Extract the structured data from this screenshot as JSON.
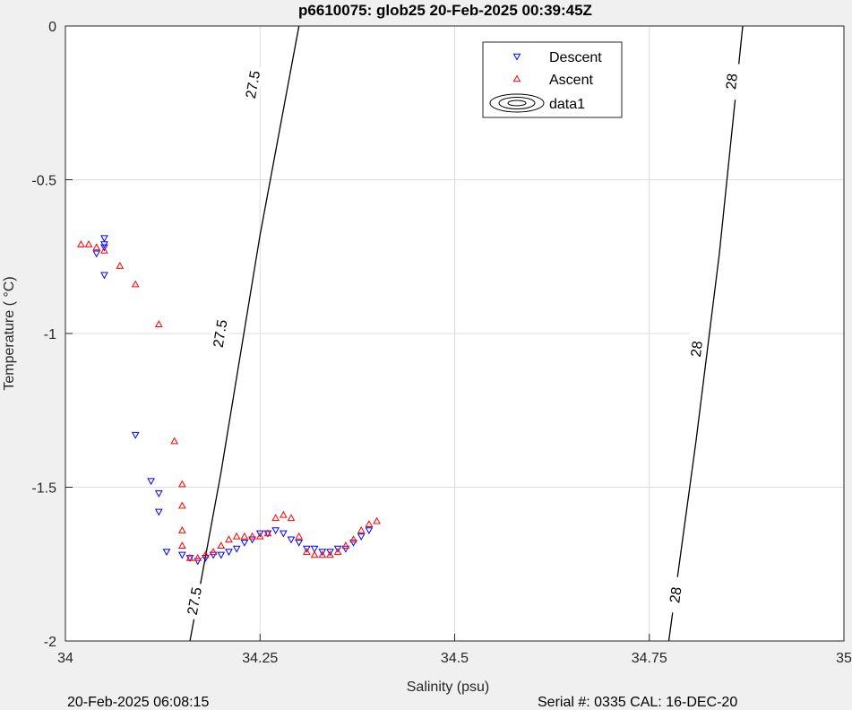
{
  "title": "p6610075: glob25 20-Feb-2025 00:39:45Z",
  "footer": {
    "left": "20-Feb-2025 06:08:15",
    "right": "Serial #: 0335  CAL: 16-DEC-20"
  },
  "chart_data": {
    "type": "scatter",
    "title": "p6610075: glob25 20-Feb-2025 00:39:45Z",
    "xlabel": "Salinity (psu)",
    "ylabel": "Temperature (   °C)",
    "xlim": [
      34,
      35
    ],
    "ylim": [
      -2,
      0
    ],
    "xticks": [
      34,
      34.25,
      34.5,
      34.75,
      35
    ],
    "xtick_labels": [
      "34",
      "34.25",
      "34.5",
      "34.75",
      "35"
    ],
    "yticks": [
      0,
      -0.5,
      -1,
      -1.5,
      -2
    ],
    "ytick_labels": [
      "0",
      "-0.5",
      "-1",
      "-1.5",
      "-2"
    ],
    "grid": true,
    "legend_position": "top-right",
    "legend": [
      {
        "label": "Descent",
        "marker": "triangle-down",
        "color": "#0000ff"
      },
      {
        "label": "Ascent",
        "marker": "triangle-up",
        "color": "#ff0000"
      },
      {
        "label": "data1",
        "marker": "contour",
        "color": "#000000"
      }
    ],
    "contours": [
      {
        "level": "27.5",
        "points": [
          [
            34.16,
            -2.0
          ],
          [
            34.2,
            -1.45
          ],
          [
            34.25,
            -0.68
          ],
          [
            34.3,
            0.0
          ]
        ],
        "labels": [
          [
            34.165,
            -1.87
          ],
          [
            34.198,
            -1.0
          ],
          [
            34.24,
            -0.19
          ]
        ]
      },
      {
        "level": "28",
        "points": [
          [
            34.775,
            -2.0
          ],
          [
            34.81,
            -1.35
          ],
          [
            34.84,
            -0.74
          ],
          [
            34.87,
            0.0
          ]
        ],
        "labels": [
          [
            34.783,
            -1.85
          ],
          [
            34.81,
            -1.05
          ],
          [
            34.855,
            -0.18
          ]
        ]
      }
    ],
    "series": [
      {
        "name": "Descent",
        "marker": "triangle-down",
        "color": "#0000ff",
        "points": [
          [
            34.05,
            -0.69
          ],
          [
            34.05,
            -0.71
          ],
          [
            34.05,
            -0.72
          ],
          [
            34.04,
            -0.74
          ],
          [
            34.05,
            -0.81
          ],
          [
            34.09,
            -1.33
          ],
          [
            34.11,
            -1.48
          ],
          [
            34.12,
            -1.52
          ],
          [
            34.12,
            -1.58
          ],
          [
            34.13,
            -1.71
          ],
          [
            34.15,
            -1.72
          ],
          [
            34.16,
            -1.73
          ],
          [
            34.17,
            -1.74
          ],
          [
            34.18,
            -1.73
          ],
          [
            34.19,
            -1.72
          ],
          [
            34.2,
            -1.72
          ],
          [
            34.21,
            -1.71
          ],
          [
            34.22,
            -1.7
          ],
          [
            34.23,
            -1.68
          ],
          [
            34.24,
            -1.67
          ],
          [
            34.25,
            -1.65
          ],
          [
            34.26,
            -1.65
          ],
          [
            34.27,
            -1.64
          ],
          [
            34.28,
            -1.65
          ],
          [
            34.29,
            -1.67
          ],
          [
            34.3,
            -1.68
          ],
          [
            34.31,
            -1.7
          ],
          [
            34.32,
            -1.7
          ],
          [
            34.33,
            -1.71
          ],
          [
            34.34,
            -1.71
          ],
          [
            34.35,
            -1.7
          ],
          [
            34.36,
            -1.7
          ],
          [
            34.37,
            -1.68
          ],
          [
            34.38,
            -1.66
          ],
          [
            34.39,
            -1.64
          ]
        ]
      },
      {
        "name": "Ascent",
        "marker": "triangle-up",
        "color": "#ff0000",
        "points": [
          [
            34.02,
            -0.71
          ],
          [
            34.03,
            -0.71
          ],
          [
            34.04,
            -0.72
          ],
          [
            34.05,
            -0.73
          ],
          [
            34.07,
            -0.78
          ],
          [
            34.09,
            -0.84
          ],
          [
            34.12,
            -0.97
          ],
          [
            34.14,
            -1.35
          ],
          [
            34.15,
            -1.49
          ],
          [
            34.15,
            -1.56
          ],
          [
            34.15,
            -1.64
          ],
          [
            34.15,
            -1.69
          ],
          [
            34.16,
            -1.73
          ],
          [
            34.17,
            -1.73
          ],
          [
            34.18,
            -1.72
          ],
          [
            34.19,
            -1.71
          ],
          [
            34.2,
            -1.69
          ],
          [
            34.21,
            -1.67
          ],
          [
            34.22,
            -1.66
          ],
          [
            34.23,
            -1.66
          ],
          [
            34.24,
            -1.66
          ],
          [
            34.25,
            -1.66
          ],
          [
            34.26,
            -1.65
          ],
          [
            34.27,
            -1.6
          ],
          [
            34.28,
            -1.59
          ],
          [
            34.29,
            -1.6
          ],
          [
            34.3,
            -1.66
          ],
          [
            34.31,
            -1.71
          ],
          [
            34.32,
            -1.72
          ],
          [
            34.33,
            -1.72
          ],
          [
            34.34,
            -1.72
          ],
          [
            34.35,
            -1.71
          ],
          [
            34.36,
            -1.69
          ],
          [
            34.37,
            -1.67
          ],
          [
            34.38,
            -1.64
          ],
          [
            34.39,
            -1.62
          ],
          [
            34.4,
            -1.61
          ]
        ]
      }
    ]
  }
}
